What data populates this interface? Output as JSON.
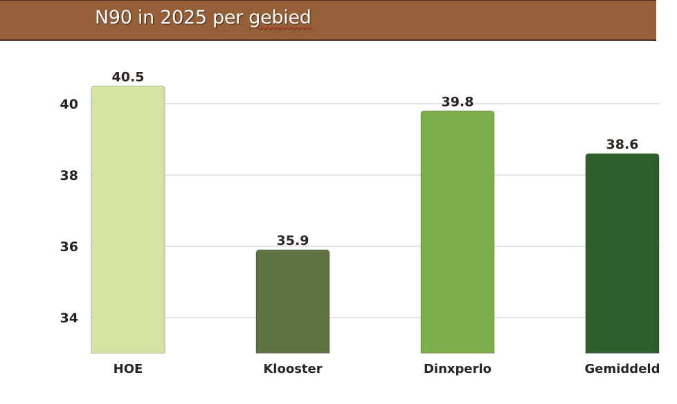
{
  "chart_data": {
    "type": "bar",
    "title": "N90 in 2025 per gebied",
    "title_parts": {
      "main": "N90 in 2025 per",
      "flagged": "gebied"
    },
    "categories": [
      "HOE",
      "Klooster",
      "Dinxperlo",
      "Gemiddeld"
    ],
    "values": [
      40.5,
      35.9,
      39.8,
      38.6
    ],
    "data_labels": [
      "40.5",
      "35.9",
      "39.8",
      "38.6"
    ],
    "colors": [
      "#d3e4a3",
      "#5f7242",
      "#7dae4b",
      "#2d5f2d"
    ],
    "yticks": [
      34,
      36,
      38,
      40
    ],
    "ylim": [
      33,
      41
    ],
    "grid": true,
    "legend": "none",
    "xlabel": "",
    "ylabel": ""
  },
  "colors": {
    "banner": "#955f38",
    "gridline": "#c8c8c8"
  }
}
